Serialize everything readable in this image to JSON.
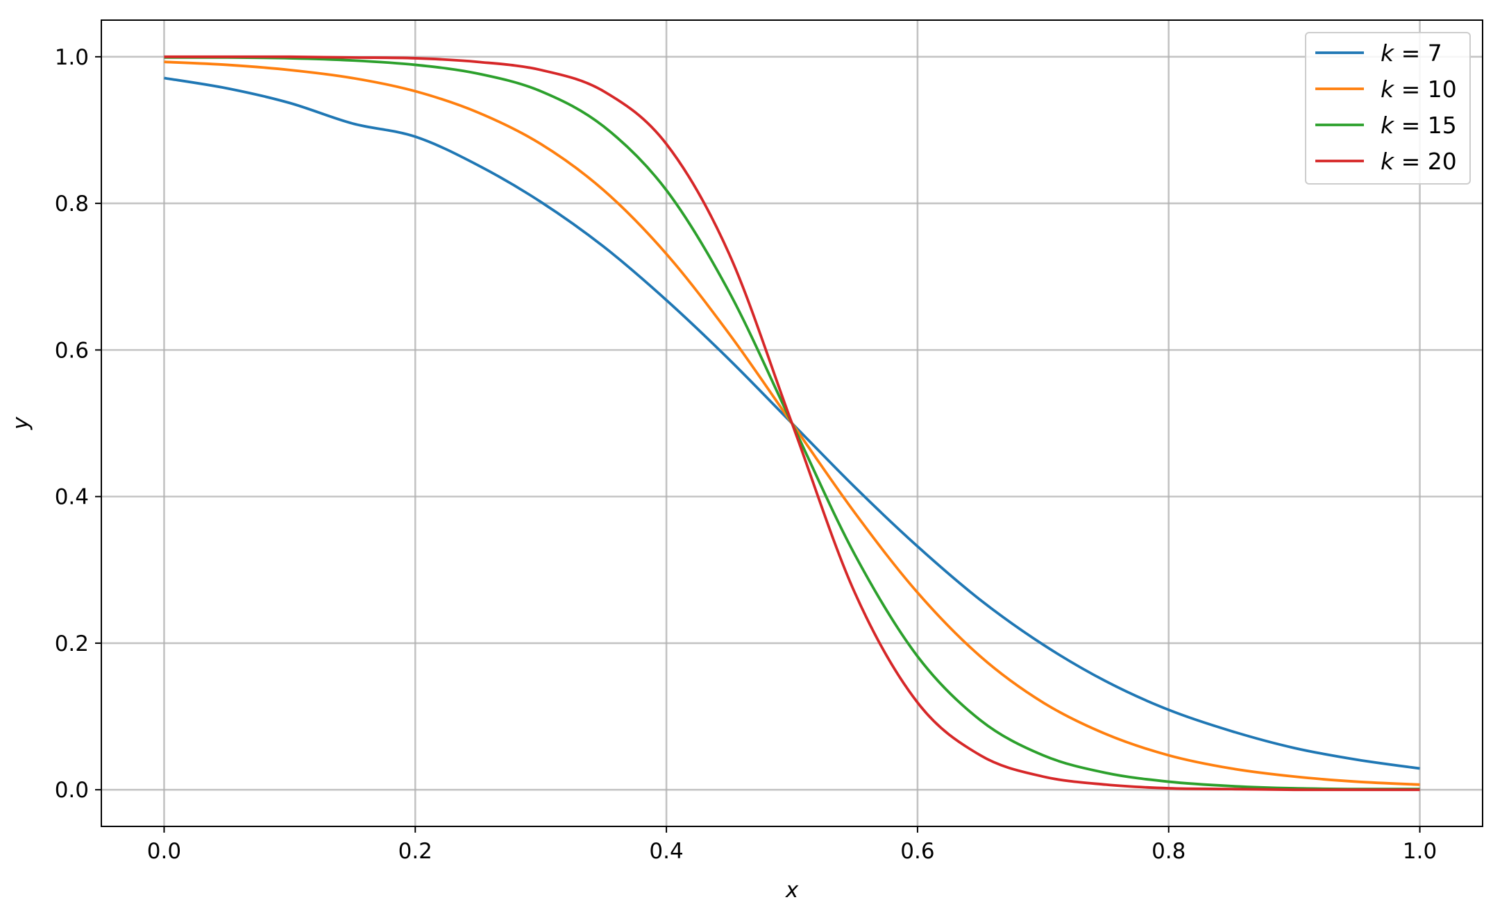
{
  "chart_data": {
    "type": "line",
    "title": "",
    "xlabel": "x",
    "ylabel": "y",
    "xlim": [
      -0.05,
      1.05
    ],
    "ylim": [
      -0.05,
      1.05
    ],
    "xticks": [
      0.0,
      0.2,
      0.4,
      0.6,
      0.8,
      1.0
    ],
    "xtick_labels": [
      "0.0",
      "0.2",
      "0.4",
      "0.6",
      "0.8",
      "1.0"
    ],
    "yticks": [
      0.0,
      0.2,
      0.4,
      0.6,
      0.8,
      1.0
    ],
    "ytick_labels": [
      "0.0",
      "0.2",
      "0.4",
      "0.6",
      "0.8",
      "1.0"
    ],
    "grid": true,
    "legend_position": "top-right",
    "x": [
      0.0,
      0.05,
      0.1,
      0.15,
      0.2,
      0.25,
      0.3,
      0.35,
      0.4,
      0.45,
      0.5,
      0.55,
      0.6,
      0.65,
      0.7,
      0.75,
      0.8,
      0.85,
      0.9,
      0.95,
      1.0
    ],
    "series": [
      {
        "name": "k = 7",
        "legend_k": "7",
        "color": "#1f77b4",
        "values": [
          0.971,
          0.957,
          0.937,
          0.909,
          0.891,
          0.852,
          0.802,
          0.741,
          0.668,
          0.587,
          0.5,
          0.413,
          0.332,
          0.259,
          0.198,
          0.148,
          0.109,
          0.08,
          0.057,
          0.041,
          0.029
        ]
      },
      {
        "name": "k = 10",
        "legend_k": "10",
        "color": "#ff7f0e",
        "values": [
          0.993,
          0.989,
          0.982,
          0.971,
          0.953,
          0.924,
          0.881,
          0.818,
          0.731,
          0.622,
          0.5,
          0.378,
          0.269,
          0.182,
          0.119,
          0.076,
          0.047,
          0.029,
          0.018,
          0.011,
          0.007
        ]
      },
      {
        "name": "k = 15",
        "legend_k": "15",
        "color": "#2ca02c",
        "values": [
          0.999,
          0.999,
          0.998,
          0.995,
          0.989,
          0.977,
          0.953,
          0.905,
          0.818,
          0.679,
          0.5,
          0.321,
          0.182,
          0.095,
          0.047,
          0.023,
          0.011,
          0.005,
          0.002,
          0.001,
          0.001
        ]
      },
      {
        "name": "k = 20",
        "legend_k": "20",
        "color": "#d62728",
        "values": [
          1.0,
          1.0,
          1.0,
          0.999,
          0.998,
          0.993,
          0.982,
          0.953,
          0.881,
          0.731,
          0.5,
          0.269,
          0.119,
          0.047,
          0.018,
          0.007,
          0.002,
          0.001,
          0.0,
          0.0,
          0.0
        ]
      }
    ]
  }
}
